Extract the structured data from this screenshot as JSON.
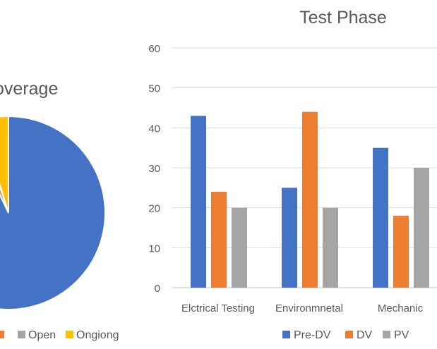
{
  "chart_data": [
    {
      "type": "pie",
      "title": "overage",
      "slices": [
        {
          "label": "",
          "value": 93,
          "color": "#4472C4"
        },
        {
          "label": "",
          "value": 2,
          "color": "#ED7D31"
        },
        {
          "label": "Open",
          "value": 0.3,
          "color": "#A5A5A5"
        },
        {
          "label": "Ongiong",
          "value": 4.7,
          "color": "#FFC000"
        }
      ],
      "legend": [
        {
          "label": "",
          "color": "#ED7D31"
        },
        {
          "label": "Open",
          "color": "#A5A5A5"
        },
        {
          "label": "Ongiong",
          "color": "#FFC000"
        }
      ],
      "legend_position": "bottom"
    },
    {
      "type": "bar",
      "title": "Test Phase",
      "categories": [
        "Elctrical Testing",
        "Environmnetal",
        "Mechanic"
      ],
      "series": [
        {
          "name": "Pre-DV",
          "color": "#4472C4",
          "values": [
            43,
            25,
            35
          ]
        },
        {
          "name": "DV",
          "color": "#ED7D31",
          "values": [
            24,
            44,
            18
          ]
        },
        {
          "name": "PV",
          "color": "#A5A5A5",
          "values": [
            20,
            20,
            30
          ]
        }
      ],
      "ylim": [
        0,
        60
      ],
      "yticks": [
        0,
        10,
        20,
        30,
        40,
        50,
        60
      ],
      "grid": true,
      "legend_position": "bottom"
    }
  ]
}
